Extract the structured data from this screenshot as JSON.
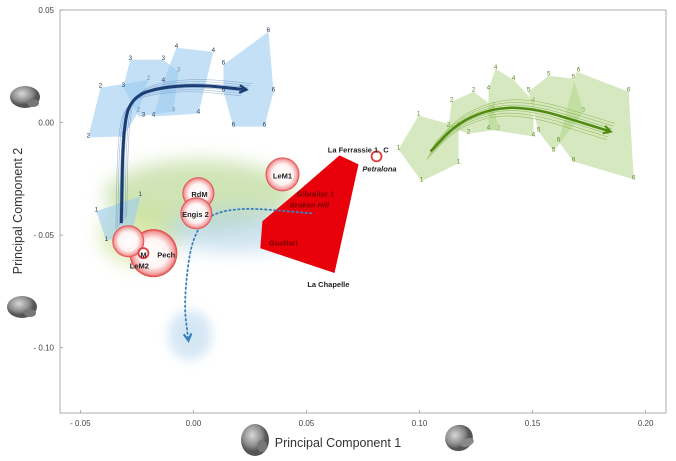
{
  "chart_data": {
    "type": "scatter",
    "xlabel": "Principal Component 1",
    "ylabel": "Principal Component 2",
    "xlim": [
      -0.059,
      0.209
    ],
    "ylim": [
      -0.129,
      0.05
    ],
    "xticks": [
      -0.05,
      0.0,
      0.05,
      0.1,
      0.15,
      0.2
    ],
    "xtick_labels": [
      "- 0.05",
      "0.00",
      "0.05",
      "0.10",
      "0.15",
      "0.20"
    ],
    "yticks": [
      0.05,
      0.0,
      -0.05,
      -0.1
    ],
    "ytick_labels": [
      "0.05",
      "0.00",
      "- 0.05",
      "- 0.10"
    ],
    "grid": false,
    "colors": {
      "blue_group": "#9ccbf0",
      "blue_trajectory": "#1b3d73",
      "green_group": "#b5d68a",
      "green_trajectory": "#4f8a10",
      "neanderthal_area": "#e8000b",
      "specimen_circle": "#e03a3a",
      "dotted_path": "#3a7fc0"
    },
    "blue_groups": [
      {
        "stage": "1",
        "vertices": [
          [
            -0.0429,
            -0.0394
          ],
          [
            -0.0235,
            -0.0327
          ],
          [
            -0.027,
            -0.0482
          ],
          [
            -0.0385,
            -0.0527
          ]
        ]
      },
      {
        "stage": "2",
        "vertices": [
          [
            -0.0465,
            -0.0066
          ],
          [
            -0.0411,
            0.0155
          ],
          [
            -0.0199,
            0.019
          ],
          [
            -0.0243,
            0.0049
          ],
          [
            -0.031,
            -0.0062
          ]
        ]
      },
      {
        "stage": "3",
        "vertices": [
          [
            -0.0279,
            0.0279
          ],
          [
            -0.0133,
            0.0279
          ],
          [
            -0.0066,
            0.0226
          ],
          [
            -0.0088,
            0.0049
          ],
          [
            -0.0243,
            0.0027
          ],
          [
            -0.031,
            0.0159
          ]
        ]
      },
      {
        "stage": "4",
        "vertices": [
          [
            -0.0075,
            0.0332
          ],
          [
            0.0088,
            0.0314
          ],
          [
            0.0022,
            0.004
          ],
          [
            -0.0177,
            0.0027
          ],
          [
            -0.0133,
            0.0181
          ]
        ]
      },
      {
        "stage": "6",
        "vertices": [
          [
            0.0133,
            0.0257
          ],
          [
            0.0332,
            0.0403
          ],
          [
            0.0354,
            0.0137
          ],
          [
            0.0314,
            -0.0018
          ],
          [
            0.0177,
            -0.0018
          ],
          [
            0.0133,
            0.0137
          ]
        ]
      }
    ],
    "blue_trajectory": [
      [
        -0.0319,
        -0.0447
      ],
      [
        -0.031,
        0.0004
      ],
      [
        -0.0265,
        0.0115
      ],
      [
        -0.0155,
        0.0155
      ],
      [
        0.0022,
        0.0168
      ],
      [
        0.0235,
        0.0146
      ]
    ],
    "green_groups": [
      {
        "stage": "1",
        "vertices": [
          [
            0.0996,
            0.0031
          ],
          [
            0.1173,
            -0.0018
          ],
          [
            0.1173,
            -0.0181
          ],
          [
            0.1009,
            -0.0261
          ],
          [
            0.0907,
            -0.0119
          ]
        ]
      },
      {
        "stage": "2",
        "vertices": [
          [
            0.1142,
            0.0093
          ],
          [
            0.1239,
            0.0137
          ],
          [
            0.1327,
            0.0071
          ],
          [
            0.135,
            -0.0031
          ],
          [
            0.1217,
            -0.0049
          ],
          [
            0.1128,
            -0.0018
          ]
        ]
      },
      {
        "stage": "4",
        "vertices": [
          [
            0.1305,
            0.0146
          ],
          [
            0.1336,
            0.0239
          ],
          [
            0.1416,
            0.019
          ],
          [
            0.1504,
            0.0093
          ],
          [
            0.1504,
            -0.0062
          ],
          [
            0.1305,
            -0.0031
          ]
        ]
      },
      {
        "stage": "5",
        "vertices": [
          [
            0.1482,
            0.0137
          ],
          [
            0.1571,
            0.0208
          ],
          [
            0.1681,
            0.0195
          ],
          [
            0.1726,
            0.0049
          ],
          [
            0.1593,
            -0.0128
          ],
          [
            0.1527,
            -0.004
          ]
        ]
      },
      {
        "stage": "6",
        "vertices": [
          [
            0.1695,
            0.0226
          ],
          [
            0.1925,
            0.0137
          ],
          [
            0.1947,
            -0.0252
          ],
          [
            0.1681,
            -0.0173
          ],
          [
            0.1615,
            -0.0084
          ]
        ]
      }
    ],
    "green_trajectory": [
      [
        0.1049,
        -0.0128
      ],
      [
        0.1173,
        0.0004
      ],
      [
        0.135,
        0.0071
      ],
      [
        0.1527,
        0.0058
      ],
      [
        0.1704,
        0.0004
      ],
      [
        0.1845,
        -0.004
      ]
    ],
    "neanderthal_area": [
      [
        0.0646,
        -0.0146
      ],
      [
        0.073,
        -0.0186
      ],
      [
        0.0624,
        -0.0668
      ],
      [
        0.0296,
        -0.0558
      ],
      [
        0.0305,
        -0.0438
      ],
      [
        0.0473,
        -0.0296
      ]
    ],
    "dotted_path": [
      [
        0.0522,
        -0.0403
      ],
      [
        0.0155,
        -0.0372
      ],
      [
        0.0,
        -0.046
      ],
      [
        -0.0044,
        -0.0792
      ],
      [
        -0.0022,
        -0.0969
      ]
    ],
    "specimen_circles": [
      {
        "x": 0.0394,
        "y": -0.023,
        "size": "large"
      },
      {
        "x": 0.0022,
        "y": -0.0314,
        "size": "medium"
      },
      {
        "x": 0.0013,
        "y": -0.0403,
        "size": "medium"
      },
      {
        "x": -0.0177,
        "y": -0.058,
        "size": "xlarge"
      },
      {
        "x": -0.0288,
        "y": -0.0527,
        "size": "medium"
      },
      {
        "x": 0.081,
        "y": -0.015,
        "size": "small"
      },
      {
        "x": -0.0221,
        "y": -0.058,
        "size": "small"
      }
    ],
    "labels": [
      {
        "text": "LeM1",
        "x": 0.0394,
        "y": -0.0235,
        "style": "dark"
      },
      {
        "text": "RdM",
        "x": 0.0027,
        "y": -0.0318,
        "style": "dark"
      },
      {
        "text": "Engis 2",
        "x": 0.0009,
        "y": -0.0406,
        "style": "dark"
      },
      {
        "text": "Pech",
        "x": -0.012,
        "y": -0.0587,
        "style": "dark"
      },
      {
        "text": "M",
        "x": -0.0221,
        "y": -0.0587,
        "style": "dark"
      },
      {
        "text": "LeM2",
        "x": -0.0239,
        "y": -0.0635,
        "style": "dark"
      },
      {
        "text": "La Ferrassie 1",
        "x": 0.0735,
        "y": -0.012,
        "style": "dark"
      },
      {
        "text": "C",
        "x": 0.0835,
        "y": -0.012,
        "style": "green"
      },
      {
        "text": "Petralona",
        "x": 0.0823,
        "y": -0.0205,
        "style": "italic"
      },
      {
        "text": "Gibraltar 1",
        "x": 0.054,
        "y": -0.0315,
        "style": "red"
      },
      {
        "text": "Broken Hill",
        "x": 0.0513,
        "y": -0.0363,
        "style": "red-italic"
      },
      {
        "text": "Guattari",
        "x": 0.0398,
        "y": -0.0532,
        "style": "red"
      },
      {
        "text": "La Chapelle",
        "x": 0.0597,
        "y": -0.0718,
        "style": "dark"
      }
    ]
  }
}
